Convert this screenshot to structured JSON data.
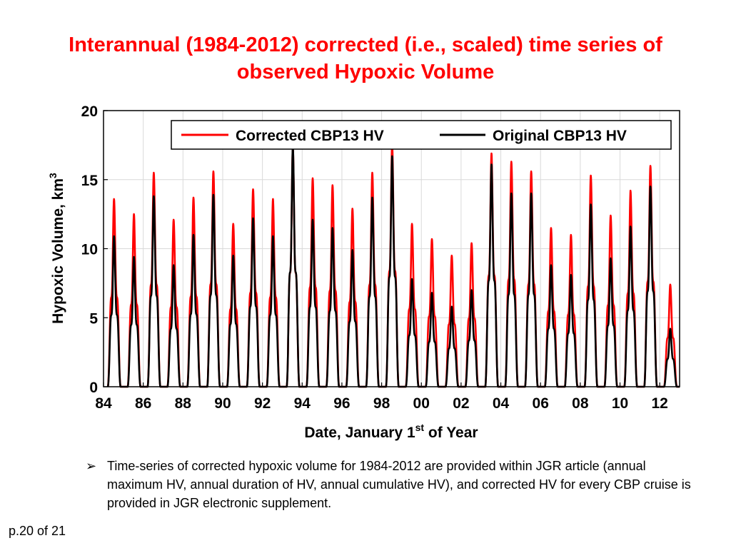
{
  "slide": {
    "title": "Interannual (1984-2012) corrected (i.e., scaled) time series of observed Hypoxic Volume",
    "bullet_marker": "➢",
    "bullet_text": "Time-series of corrected hypoxic volume for 1984-2012 are provided within JGR article (annual maximum HV, annual duration of HV, annual cumulative HV), and corrected HV for every CBP cruise is provided in JGR electronic supplement.",
    "page_number": "p.20 of 21"
  },
  "chart_data": {
    "type": "line",
    "title": "",
    "xlabel": "Date, January 1",
    "xlabel_sup": "st",
    "xlabel_suffix": " of Year",
    "ylabel": "Hypoxic Volume, km",
    "ylabel_sup": "3",
    "xlim": [
      1984,
      2013
    ],
    "ylim": [
      0,
      20
    ],
    "xticks": [
      1984,
      1986,
      1988,
      1990,
      1992,
      1994,
      1996,
      1998,
      2000,
      2002,
      2004,
      2006,
      2008,
      2010,
      2012
    ],
    "xtick_labels": [
      "84",
      "86",
      "88",
      "90",
      "92",
      "94",
      "96",
      "98",
      "00",
      "02",
      "04",
      "06",
      "08",
      "10",
      "12"
    ],
    "yticks": [
      0,
      5,
      10,
      15,
      20
    ],
    "ytick_labels": [
      "0",
      "5",
      "10",
      "15",
      "20"
    ],
    "grid": true,
    "legend_position": "top-right",
    "series": [
      {
        "name": "Corrected CBP13 HV",
        "color": "#ff0000",
        "annual_peaks": [
          13.6,
          12.5,
          15.5,
          12.1,
          13.7,
          15.6,
          11.8,
          14.3,
          13.6,
          17.3,
          15.1,
          14.6,
          12.9,
          15.5,
          17.6,
          11.8,
          10.7,
          9.5,
          10.4,
          16.9,
          16.3,
          15.6,
          11.5,
          11.0,
          15.3,
          12.4,
          14.2,
          16.0,
          7.4
        ]
      },
      {
        "name": "Original CBP13 HV",
        "color": "#000000",
        "annual_peaks": [
          10.9,
          9.4,
          13.8,
          8.8,
          11.0,
          13.9,
          9.5,
          12.2,
          10.9,
          17.4,
          12.1,
          11.5,
          9.9,
          13.7,
          16.7,
          7.8,
          6.8,
          5.8,
          7.0,
          16.1,
          14.0,
          14.0,
          8.8,
          8.1,
          13.2,
          9.3,
          11.6,
          14.5,
          4.2
        ]
      }
    ]
  }
}
